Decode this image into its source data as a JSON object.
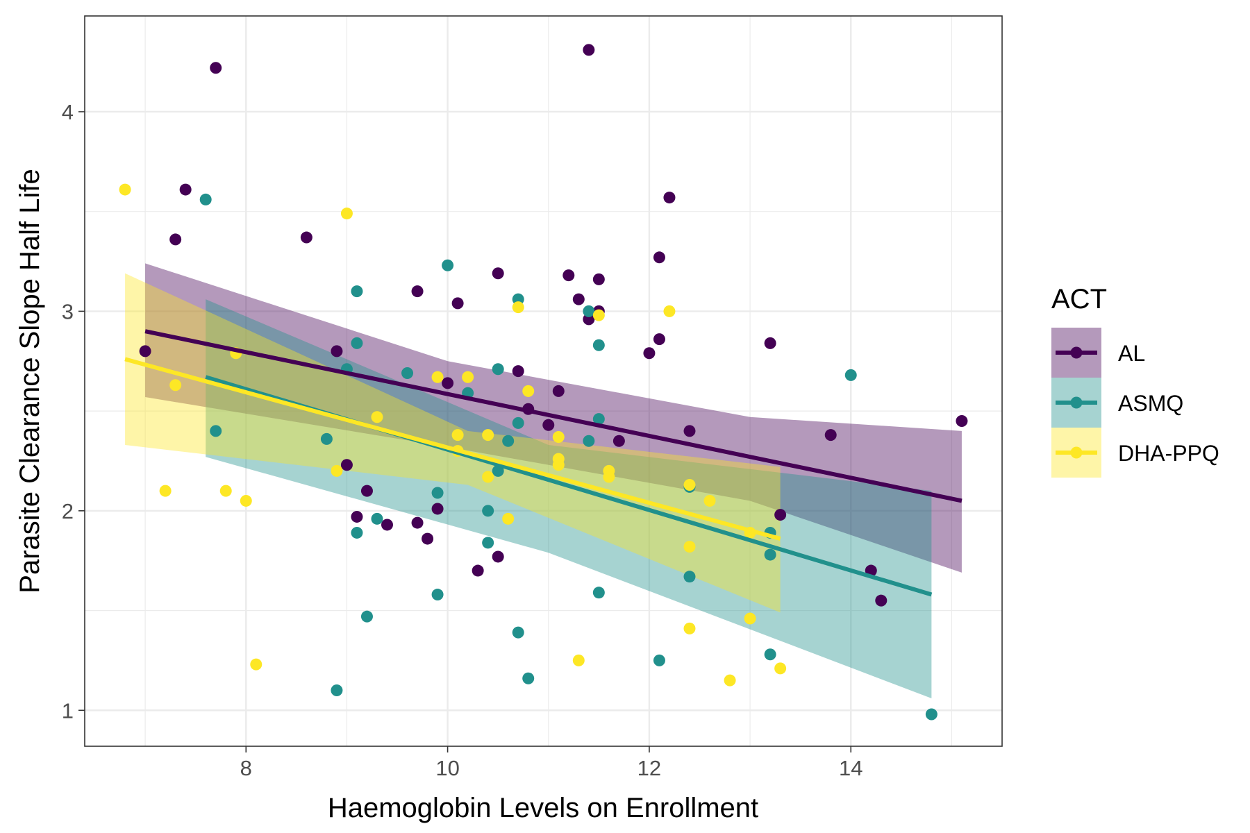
{
  "chart_data": {
    "type": "scatter",
    "title": "",
    "xlabel": "Haemoglobin Levels on Enrollment",
    "ylabel": "Parasite Clearance Slope Half Life",
    "xlim": [
      6.4,
      15.5
    ],
    "ylim": [
      0.82,
      4.48
    ],
    "xticks": [
      8,
      10,
      12,
      14
    ],
    "yticks": [
      1,
      2,
      3,
      4
    ],
    "grid": true,
    "legend": {
      "title": "ACT",
      "position": "right",
      "entries": [
        "AL",
        "ASMQ",
        "DHA-PPQ"
      ]
    },
    "series": [
      {
        "name": "AL",
        "color": "#440154",
        "points": [
          [
            7.0,
            2.8
          ],
          [
            7.3,
            3.36
          ],
          [
            7.4,
            3.61
          ],
          [
            7.7,
            4.22
          ],
          [
            8.6,
            3.37
          ],
          [
            8.9,
            2.8
          ],
          [
            9.0,
            2.23
          ],
          [
            9.1,
            1.97
          ],
          [
            9.2,
            2.1
          ],
          [
            9.4,
            1.93
          ],
          [
            9.7,
            3.1
          ],
          [
            9.7,
            1.94
          ],
          [
            9.8,
            1.86
          ],
          [
            9.9,
            2.01
          ],
          [
            10.0,
            2.64
          ],
          [
            10.1,
            3.04
          ],
          [
            10.3,
            1.7
          ],
          [
            10.5,
            3.19
          ],
          [
            10.5,
            1.77
          ],
          [
            10.7,
            2.7
          ],
          [
            10.8,
            2.51
          ],
          [
            11.0,
            2.43
          ],
          [
            11.1,
            2.6
          ],
          [
            11.2,
            3.18
          ],
          [
            11.3,
            3.06
          ],
          [
            11.4,
            2.96
          ],
          [
            11.4,
            4.31
          ],
          [
            11.5,
            3.16
          ],
          [
            11.5,
            3.0
          ],
          [
            11.7,
            2.35
          ],
          [
            12.0,
            2.79
          ],
          [
            12.1,
            3.27
          ],
          [
            12.1,
            2.86
          ],
          [
            12.2,
            3.57
          ],
          [
            12.4,
            2.4
          ],
          [
            13.2,
            2.84
          ],
          [
            13.3,
            1.98
          ],
          [
            13.8,
            2.38
          ],
          [
            14.2,
            1.7
          ],
          [
            14.3,
            1.55
          ],
          [
            15.1,
            2.45
          ]
        ],
        "fit": {
          "x": [
            7.0,
            15.1
          ],
          "y": [
            2.9,
            2.05
          ]
        },
        "ci_upper": [
          3.24,
          2.75,
          2.47,
          2.4
        ],
        "ci_lower": [
          2.57,
          2.32,
          2.05,
          1.69
        ],
        "ci_x": [
          7.0,
          10.0,
          13.0,
          15.1
        ]
      },
      {
        "name": "ASMQ",
        "color": "#21908c",
        "points": [
          [
            7.6,
            3.56
          ],
          [
            7.7,
            2.4
          ],
          [
            8.8,
            2.36
          ],
          [
            8.9,
            1.1
          ],
          [
            9.0,
            2.71
          ],
          [
            9.1,
            3.1
          ],
          [
            9.1,
            2.84
          ],
          [
            9.1,
            1.89
          ],
          [
            9.2,
            1.47
          ],
          [
            9.3,
            1.96
          ],
          [
            9.6,
            2.69
          ],
          [
            9.9,
            2.09
          ],
          [
            9.9,
            1.58
          ],
          [
            10.0,
            3.23
          ],
          [
            10.2,
            2.59
          ],
          [
            10.4,
            2.0
          ],
          [
            10.4,
            1.84
          ],
          [
            10.5,
            2.71
          ],
          [
            10.5,
            2.2
          ],
          [
            10.6,
            2.35
          ],
          [
            10.7,
            3.06
          ],
          [
            10.7,
            2.44
          ],
          [
            10.7,
            1.39
          ],
          [
            10.8,
            1.16
          ],
          [
            11.4,
            3.0
          ],
          [
            11.4,
            2.35
          ],
          [
            11.5,
            2.83
          ],
          [
            11.5,
            2.46
          ],
          [
            11.5,
            1.59
          ],
          [
            12.1,
            1.25
          ],
          [
            12.4,
            2.12
          ],
          [
            12.4,
            1.67
          ],
          [
            13.2,
            1.89
          ],
          [
            13.2,
            1.78
          ],
          [
            13.2,
            1.28
          ],
          [
            14.0,
            2.68
          ],
          [
            14.8,
            0.98
          ]
        ],
        "fit": {
          "x": [
            7.6,
            14.8
          ],
          "y": [
            2.67,
            1.58
          ]
        },
        "ci_upper": [
          3.06,
          2.33,
          2.1
        ],
        "ci_lower": [
          2.27,
          1.79,
          1.06
        ],
        "ci_x": [
          7.6,
          11.0,
          14.8
        ]
      },
      {
        "name": "DHA-PPQ",
        "color": "#fde725",
        "points": [
          [
            6.8,
            3.61
          ],
          [
            7.2,
            2.1
          ],
          [
            7.3,
            2.63
          ],
          [
            7.8,
            2.1
          ],
          [
            7.9,
            2.79
          ],
          [
            8.0,
            2.05
          ],
          [
            8.1,
            1.23
          ],
          [
            8.9,
            2.2
          ],
          [
            9.0,
            3.49
          ],
          [
            9.3,
            2.47
          ],
          [
            9.9,
            2.67
          ],
          [
            10.1,
            2.38
          ],
          [
            10.1,
            2.3
          ],
          [
            10.2,
            2.67
          ],
          [
            10.4,
            2.38
          ],
          [
            10.4,
            2.17
          ],
          [
            10.6,
            1.96
          ],
          [
            10.7,
            3.02
          ],
          [
            10.8,
            2.6
          ],
          [
            11.1,
            2.37
          ],
          [
            11.1,
            2.26
          ],
          [
            11.1,
            2.23
          ],
          [
            11.3,
            1.25
          ],
          [
            11.5,
            2.98
          ],
          [
            11.6,
            2.2
          ],
          [
            11.6,
            2.17
          ],
          [
            12.2,
            3.0
          ],
          [
            12.4,
            2.13
          ],
          [
            12.4,
            1.82
          ],
          [
            12.4,
            1.41
          ],
          [
            12.6,
            2.05
          ],
          [
            12.8,
            1.15
          ],
          [
            13.0,
            1.89
          ],
          [
            13.0,
            1.46
          ],
          [
            13.3,
            1.21
          ]
        ],
        "fit": {
          "x": [
            6.8,
            13.3
          ],
          "y": [
            2.76,
            1.86
          ]
        },
        "ci_upper": [
          3.19,
          2.4,
          2.22
        ],
        "ci_lower": [
          2.33,
          2.13,
          1.49
        ],
        "ci_x": [
          6.8,
          10.2,
          13.3
        ]
      }
    ]
  }
}
